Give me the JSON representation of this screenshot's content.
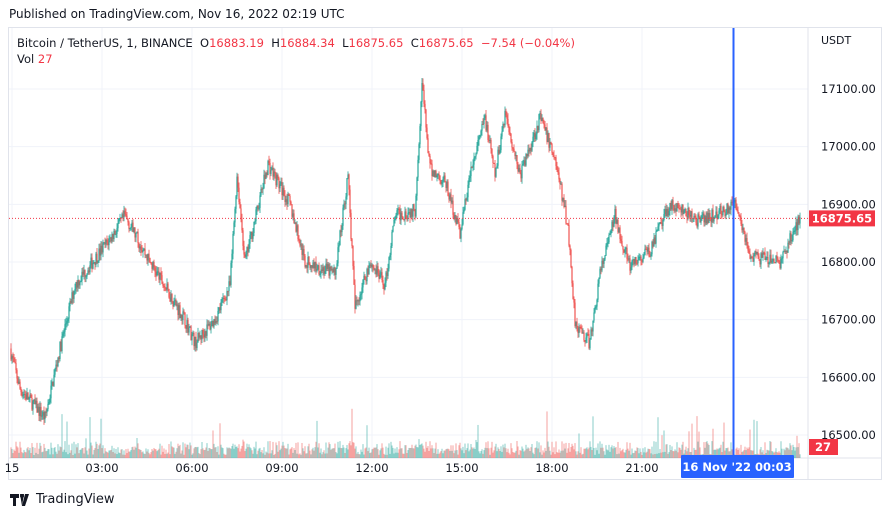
{
  "published": "Published on TradingView.com, Nov 16, 2022 02:19 UTC",
  "legend": {
    "symbol": "Bitcoin / TetherUS, 1, BINANCE",
    "o_label": "O",
    "o": "16883.19",
    "h_label": "H",
    "h": "16884.34",
    "l_label": "L",
    "l": "16875.65",
    "c_label": "C",
    "c": "16875.65",
    "change": "−7.54 (−0.04%)",
    "vol_label": "Vol",
    "vol": "27"
  },
  "currency": "USDT",
  "last_price": "16875.65",
  "last_volume": "27",
  "crosshair_label": "16 Nov '22   00:03",
  "brand": "TradingView",
  "colors": {
    "up": "#26a69a",
    "down": "#ef5350",
    "crosshair": "#2962ff",
    "label": "#f23645"
  },
  "chart_data": {
    "type": "candlestick",
    "title": "Bitcoin / TetherUS, 1, BINANCE",
    "ylabel": "USDT",
    "ylim": [
      16470,
      17170
    ],
    "y_ticks": [
      "17100.00",
      "17000.00",
      "16900.00",
      "16800.00",
      "16700.00",
      "16600.00",
      "16500.00"
    ],
    "x_ticks": [
      "15",
      "03:00",
      "06:00",
      "09:00",
      "12:00",
      "15:00",
      "18:00",
      "21:00"
    ],
    "crosshair_minute": 1443,
    "path_minute_price": [
      [
        -4,
        16650
      ],
      [
        16,
        16580
      ],
      [
        66,
        16530
      ],
      [
        96,
        16650
      ],
      [
        126,
        16760
      ],
      [
        196,
        16840
      ],
      [
        226,
        16880
      ],
      [
        276,
        16800
      ],
      [
        346,
        16700
      ],
      [
        366,
        16660
      ],
      [
        406,
        16700
      ],
      [
        436,
        16760
      ],
      [
        450,
        16950
      ],
      [
        466,
        16800
      ],
      [
        512,
        16970
      ],
      [
        556,
        16900
      ],
      [
        586,
        16800
      ],
      [
        616,
        16790
      ],
      [
        646,
        16780
      ],
      [
        672,
        16950
      ],
      [
        686,
        16720
      ],
      [
        716,
        16800
      ],
      [
        746,
        16760
      ],
      [
        766,
        16880
      ],
      [
        806,
        16890
      ],
      [
        820,
        17110
      ],
      [
        836,
        16960
      ],
      [
        866,
        16940
      ],
      [
        896,
        16850
      ],
      [
        916,
        16950
      ],
      [
        946,
        17050
      ],
      [
        966,
        16950
      ],
      [
        986,
        17060
      ],
      [
        1016,
        16950
      ],
      [
        1056,
        17050
      ],
      [
        1086,
        16980
      ],
      [
        1112,
        16860
      ],
      [
        1126,
        16700
      ],
      [
        1136,
        16680
      ],
      [
        1156,
        16660
      ],
      [
        1176,
        16780
      ],
      [
        1206,
        16880
      ],
      [
        1236,
        16790
      ],
      [
        1276,
        16820
      ],
      [
        1316,
        16900
      ],
      [
        1376,
        16870
      ],
      [
        1450,
        16900
      ],
      [
        1476,
        16810
      ],
      [
        1536,
        16800
      ],
      [
        1576,
        16876
      ]
    ]
  }
}
